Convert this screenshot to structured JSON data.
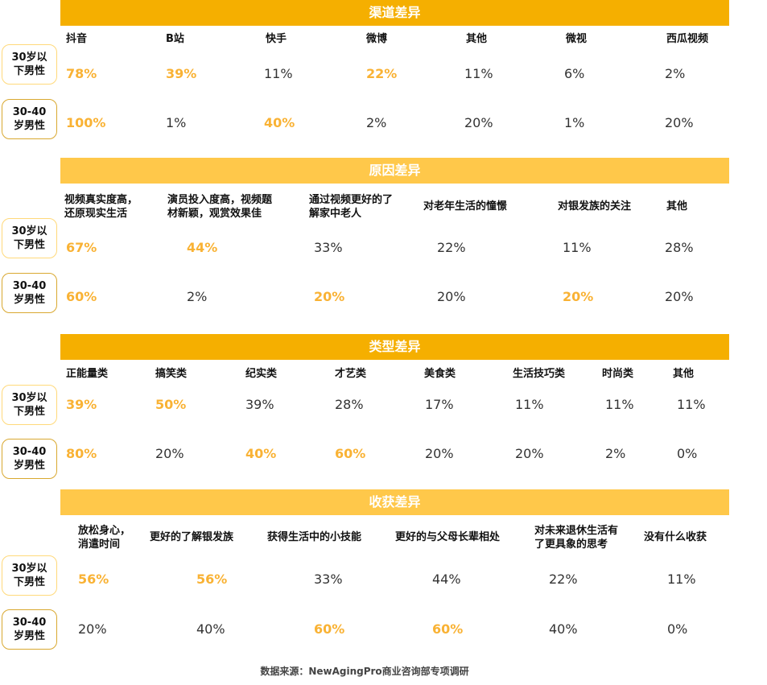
{
  "colors": {
    "header_dark": "#F5AF00",
    "header_light": "#FFC84A",
    "highlight": "#F9B234"
  },
  "row_labels": [
    "30岁以\n下男性",
    "30-40\n岁男性"
  ],
  "sections": [
    {
      "title": "渠道差异",
      "header_color": "dark",
      "columns": [
        {
          "label": "抖音",
          "under30": "78%",
          "age30_40": "100%",
          "hi": [
            true,
            true
          ]
        },
        {
          "label": "B站",
          "under30": "39%",
          "age30_40": "1%",
          "hi": [
            true,
            false
          ]
        },
        {
          "label": "快手",
          "under30": "11%",
          "age30_40": "40%",
          "hi": [
            false,
            true
          ]
        },
        {
          "label": "微博",
          "under30": "22%",
          "age30_40": "2%",
          "hi": [
            true,
            false
          ]
        },
        {
          "label": "其他",
          "under30": "11%",
          "age30_40": "20%",
          "hi": [
            false,
            false
          ]
        },
        {
          "label": "微视",
          "under30": "6%",
          "age30_40": "1%",
          "hi": [
            false,
            false
          ]
        },
        {
          "label": "西瓜视频",
          "under30": "2%",
          "age30_40": "20%",
          "hi": [
            false,
            false
          ]
        }
      ]
    },
    {
      "title": "原因差异",
      "header_color": "light",
      "columns": [
        {
          "label": "视频真实度高，\n还原现实生活",
          "under30": "67%",
          "age30_40": "60%",
          "hi": [
            true,
            true
          ]
        },
        {
          "label": "演员投入度高，视频题\n材新颖，观赏效果佳",
          "under30": "44%",
          "age30_40": "2%",
          "hi": [
            true,
            false
          ]
        },
        {
          "label": "通过视频更好的了\n解家中老人",
          "under30": "33%",
          "age30_40": "20%",
          "hi": [
            false,
            true
          ]
        },
        {
          "label": "对老年生活的憧憬",
          "under30": "22%",
          "age30_40": "20%",
          "hi": [
            false,
            false
          ]
        },
        {
          "label": "对银发族的关注",
          "under30": "11%",
          "age30_40": "20%",
          "hi": [
            false,
            true
          ]
        },
        {
          "label": "其他",
          "under30": "28%",
          "age30_40": "20%",
          "hi": [
            false,
            false
          ]
        }
      ]
    },
    {
      "title": "类型差异",
      "header_color": "dark",
      "columns": [
        {
          "label": "正能量类",
          "under30": "39%",
          "age30_40": "80%",
          "hi": [
            true,
            true
          ]
        },
        {
          "label": "搞笑类",
          "under30": "50%",
          "age30_40": "20%",
          "hi": [
            true,
            false
          ]
        },
        {
          "label": "纪实类",
          "under30": "39%",
          "age30_40": "40%",
          "hi": [
            false,
            true
          ]
        },
        {
          "label": "才艺类",
          "under30": "28%",
          "age30_40": "60%",
          "hi": [
            false,
            true
          ]
        },
        {
          "label": "美食类",
          "under30": "17%",
          "age30_40": "20%",
          "hi": [
            false,
            false
          ]
        },
        {
          "label": "生活技巧类",
          "under30": "11%",
          "age30_40": "20%",
          "hi": [
            false,
            false
          ]
        },
        {
          "label": "时尚类",
          "under30": "11%",
          "age30_40": "2%",
          "hi": [
            false,
            false
          ]
        },
        {
          "label": "其他",
          "under30": "11%",
          "age30_40": "0%",
          "hi": [
            false,
            false
          ]
        }
      ]
    },
    {
      "title": "收获差异",
      "header_color": "light",
      "columns": [
        {
          "label": "放松身心，\n消遣时间",
          "under30": "56%",
          "age30_40": "20%",
          "hi": [
            true,
            false
          ]
        },
        {
          "label": "更好的了解银发族",
          "under30": "56%",
          "age30_40": "40%",
          "hi": [
            true,
            false
          ]
        },
        {
          "label": "获得生活中的小技能",
          "under30": "33%",
          "age30_40": "60%",
          "hi": [
            false,
            true
          ]
        },
        {
          "label": "更好的与父母长辈相处",
          "under30": "44%",
          "age30_40": "60%",
          "hi": [
            false,
            true
          ]
        },
        {
          "label": "对未来退休生活有\n了更具象的思考",
          "under30": "22%",
          "age30_40": "40%",
          "hi": [
            false,
            false
          ]
        },
        {
          "label": "没有什么收获",
          "under30": "11%",
          "age30_40": "0%",
          "hi": [
            false,
            false
          ]
        }
      ]
    }
  ],
  "footer": "数据来源：NewAgingPro商业咨询部专项调研"
}
